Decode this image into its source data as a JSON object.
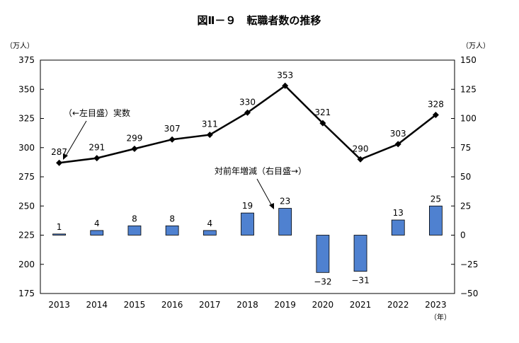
{
  "chart_data": {
    "title": "図Ⅱ－９　転職者数の推移",
    "type": "bar+line",
    "categories": [
      "2013",
      "2014",
      "2015",
      "2016",
      "2017",
      "2018",
      "2019",
      "2020",
      "2021",
      "2022",
      "2023"
    ],
    "series": [
      {
        "name": "実数",
        "type": "line",
        "axis": "left",
        "values": [
          287,
          291,
          299,
          307,
          311,
          330,
          353,
          321,
          290,
          303,
          328
        ],
        "color": "#000000"
      },
      {
        "name": "対前年増減",
        "type": "bar",
        "axis": "right",
        "values": [
          1,
          4,
          8,
          8,
          4,
          19,
          23,
          -32,
          -31,
          13,
          25
        ],
        "color": "#4f81d0"
      }
    ],
    "left_axis": {
      "unit": "（万人）",
      "min": 175,
      "max": 375,
      "step": 25,
      "ticks": [
        "175",
        "200",
        "225",
        "250",
        "275",
        "300",
        "325",
        "350",
        "375"
      ]
    },
    "right_axis": {
      "unit": "（万人）",
      "min": -50,
      "max": 150,
      "step": 25,
      "ticks": [
        "−50",
        "−25",
        "0",
        "25",
        "50",
        "75",
        "100",
        "125",
        "150"
      ]
    },
    "x_unit": "（年）",
    "annotations": {
      "line_note": "（←左目盛）実数",
      "bar_note": "対前年増減（右目盛→）"
    },
    "grid": false
  }
}
